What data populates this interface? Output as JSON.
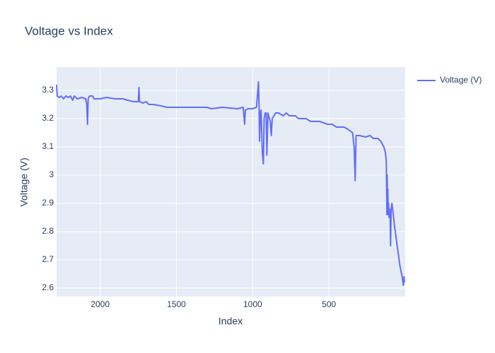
{
  "chart_data": {
    "type": "line",
    "title": "Voltage vs Index",
    "x_label": "Index",
    "y_label": "Voltage (V)",
    "x": [
      2286,
      2282,
      2270,
      2255,
      2240,
      2225,
      2210,
      2195,
      2180,
      2170,
      2150,
      2120,
      2095,
      2088,
      2083,
      2079,
      2070,
      2050,
      2040,
      2000,
      1960,
      1900,
      1850,
      1820,
      1780,
      1750,
      1746,
      1742,
      1720,
      1700,
      1680,
      1650,
      1600,
      1560,
      1500,
      1400,
      1300,
      1270,
      1200,
      1100,
      1062,
      1053,
      1048,
      1030,
      1000,
      975,
      962,
      958,
      955,
      950,
      945,
      937,
      930,
      925,
      918,
      912,
      907,
      900,
      885,
      878,
      872,
      860,
      850,
      830,
      800,
      780,
      760,
      740,
      720,
      700,
      650,
      620,
      560,
      510,
      480,
      450,
      400,
      370,
      345,
      335,
      328,
      322,
      300,
      260,
      230,
      210,
      180,
      160,
      150,
      140,
      130,
      124,
      120,
      118,
      116,
      114,
      111,
      109,
      106,
      103,
      99,
      96,
      92,
      87,
      80,
      70,
      60,
      50,
      42,
      35,
      20,
      12,
      8,
      5
    ],
    "series": [
      {
        "name": "Voltage (V)",
        "color": "#636efa",
        "values": [
          3.32,
          3.28,
          3.275,
          3.28,
          3.27,
          3.28,
          3.275,
          3.28,
          3.265,
          3.28,
          3.27,
          3.275,
          3.27,
          3.25,
          3.18,
          3.27,
          3.28,
          3.28,
          3.27,
          3.27,
          3.275,
          3.27,
          3.27,
          3.265,
          3.26,
          3.26,
          3.31,
          3.26,
          3.255,
          3.26,
          3.25,
          3.25,
          3.245,
          3.24,
          3.24,
          3.24,
          3.24,
          3.235,
          3.24,
          3.235,
          3.24,
          3.18,
          3.23,
          3.235,
          3.235,
          3.24,
          3.33,
          3.24,
          3.12,
          3.22,
          3.23,
          3.08,
          3.04,
          3.2,
          3.22,
          3.22,
          3.07,
          3.22,
          3.19,
          3.14,
          3.2,
          3.21,
          3.22,
          3.22,
          3.21,
          3.22,
          3.21,
          3.21,
          3.21,
          3.2,
          3.2,
          3.19,
          3.19,
          3.18,
          3.18,
          3.17,
          3.17,
          3.16,
          3.15,
          3.1,
          2.98,
          3.14,
          3.14,
          3.135,
          3.14,
          3.13,
          3.13,
          3.12,
          3.11,
          3.1,
          3.08,
          3.05,
          2.86,
          3.0,
          2.88,
          2.95,
          2.86,
          2.9,
          2.85,
          2.88,
          2.86,
          2.75,
          2.88,
          2.9,
          2.87,
          2.82,
          2.78,
          2.74,
          2.71,
          2.68,
          2.64,
          2.61,
          2.64,
          2.62
        ]
      }
    ],
    "xlim": [
      2286,
      0
    ],
    "ylim": [
      2.57,
      3.3825
    ],
    "xticks": [
      2000,
      1500,
      1000,
      500
    ],
    "yticks": [
      2.6,
      2.7,
      2.8,
      2.9,
      3,
      3.1,
      3.2,
      3.3
    ],
    "grid": true,
    "legend": "right"
  }
}
